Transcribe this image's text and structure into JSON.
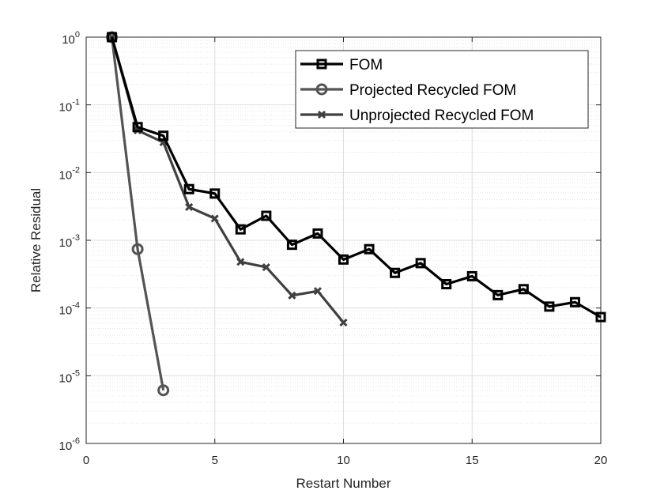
{
  "chart_data": {
    "type": "line",
    "title": "",
    "xlabel": "Restart Number",
    "ylabel": "Relative Residual",
    "xlim": [
      0,
      20
    ],
    "ylim": [
      1e-06,
      1
    ],
    "y_scale": "log",
    "grid": true,
    "minor_grid": true,
    "legend_position": "top-right",
    "x_ticks": [
      0,
      5,
      10,
      15,
      20
    ],
    "x_tick_labels": [
      "0",
      "5",
      "10",
      "15",
      "20"
    ],
    "y_ticks": [
      {
        "value": 1.0,
        "base": "10",
        "exp": "0"
      },
      {
        "value": 0.1,
        "base": "10",
        "exp": "-1"
      },
      {
        "value": 0.01,
        "base": "10",
        "exp": "-2"
      },
      {
        "value": 0.001,
        "base": "10",
        "exp": "-3"
      },
      {
        "value": 0.0001,
        "base": "10",
        "exp": "-4"
      },
      {
        "value": 1e-05,
        "base": "10",
        "exp": "-5"
      },
      {
        "value": 1e-06,
        "base": "10",
        "exp": "-6"
      }
    ],
    "series": [
      {
        "name": "FOM",
        "color": "#000000",
        "marker": "square",
        "x": [
          1,
          2,
          3,
          4,
          5,
          6,
          7,
          8,
          9,
          10,
          11,
          12,
          13,
          14,
          15,
          16,
          17,
          18,
          19,
          20
        ],
        "y": [
          1.0,
          0.047,
          0.035,
          0.0057,
          0.0049,
          0.00145,
          0.0023,
          0.00086,
          0.00126,
          0.00052,
          0.00074,
          0.00033,
          0.00046,
          0.000225,
          0.000295,
          0.000155,
          0.00019,
          0.000105,
          0.000122,
          7.35e-05
        ]
      },
      {
        "name": "Projected Recycled FOM",
        "color": "#545454",
        "marker": "circle",
        "x": [
          1,
          2,
          3
        ],
        "y": [
          1.0,
          0.00074,
          6.1e-06
        ]
      },
      {
        "name": "Unprojected Recycled FOM",
        "color": "#404040",
        "marker": "x",
        "x": [
          1,
          2,
          3,
          4,
          5,
          6,
          7,
          8,
          9,
          10
        ],
        "y": [
          1.0,
          0.042,
          0.028,
          0.0031,
          0.0021,
          0.00048,
          0.0004,
          0.000153,
          0.000178,
          6.1e-05
        ]
      }
    ]
  }
}
